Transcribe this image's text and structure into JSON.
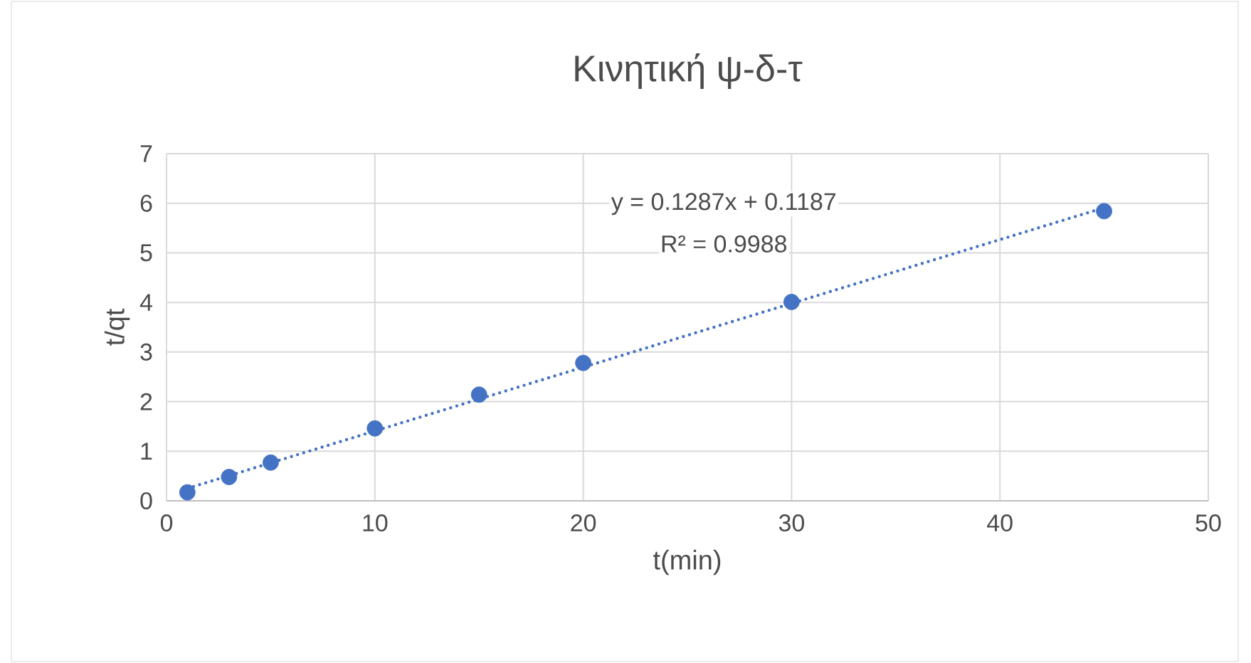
{
  "chart_data": {
    "type": "scatter",
    "title": "Κινητική ψ-δ-τ",
    "xlabel": "t(min)",
    "ylabel": "t/qt",
    "series": [
      {
        "color": "#4472c4",
        "marker": "circle",
        "x": [
          1,
          3,
          5,
          10,
          15,
          20,
          30,
          45
        ],
        "values": [
          0.17,
          0.48,
          0.77,
          1.46,
          2.14,
          2.78,
          4.01,
          5.84
        ]
      },
      {
        "type": "line",
        "color": "#4472c4",
        "line_style": "dotted",
        "marker": "none",
        "x": [
          1,
          45
        ],
        "values": [
          0.25,
          5.91
        ]
      }
    ],
    "annotations": [
      "y = 0.1287x + 0.1187",
      "R² = 0.9988"
    ],
    "xlim": [
      0,
      50
    ],
    "ylim": [
      0,
      7
    ],
    "xticks": [
      0,
      10,
      20,
      30,
      40,
      50
    ],
    "yticks": [
      0,
      1,
      2,
      3,
      4,
      5,
      6,
      7
    ],
    "grid": true
  }
}
